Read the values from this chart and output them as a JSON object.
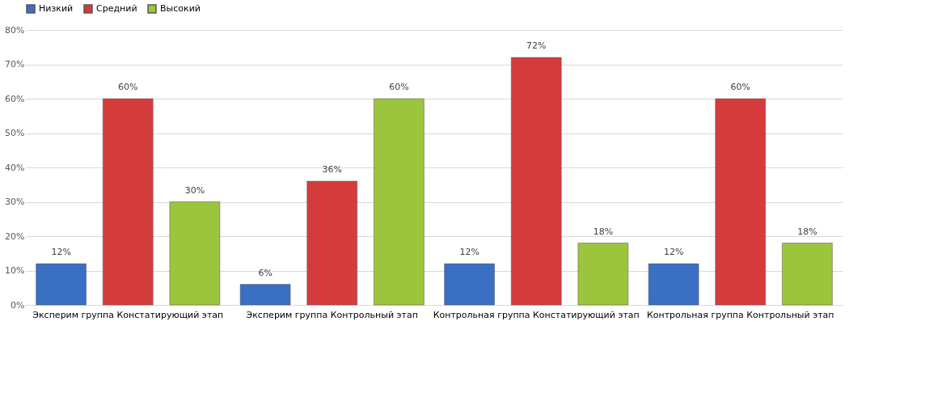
{
  "chart_data": {
    "type": "bar",
    "categories": [
      "Эксперим группа  Констатирующий этап",
      "Эксперим группа Контрольный этап",
      "Контрольная группа Констатирующий этап",
      "Контрольная группа Контрольный этап"
    ],
    "series": [
      {
        "name": "Низкий",
        "color": "#3a6fc4",
        "values": [
          12,
          6,
          12,
          12
        ],
        "value_labels": [
          "12%",
          "6%",
          "12%",
          "12%"
        ]
      },
      {
        "name": "Средний",
        "color": "#d63b3b",
        "values": [
          60,
          36,
          72,
          60
        ],
        "value_labels": [
          "60%",
          "36%",
          "72%",
          "60%"
        ]
      },
      {
        "name": "Высокий",
        "color": "#9bc53d",
        "values": [
          30,
          60,
          18,
          18
        ],
        "value_labels": [
          "30%",
          "60%",
          "18%",
          "18%"
        ]
      }
    ],
    "ylim": [
      0,
      80
    ],
    "yticks": [
      {
        "value": 0,
        "label": "0%"
      },
      {
        "value": 10,
        "label": "10%"
      },
      {
        "value": 20,
        "label": "20%"
      },
      {
        "value": 30,
        "label": "30%"
      },
      {
        "value": 40,
        "label": "40%"
      },
      {
        "value": 50,
        "label": "50%"
      },
      {
        "value": 60,
        "label": "60%"
      },
      {
        "value": 70,
        "label": "70%"
      },
      {
        "value": 80,
        "label": "80%"
      }
    ],
    "grid": "y",
    "legend": "top"
  }
}
